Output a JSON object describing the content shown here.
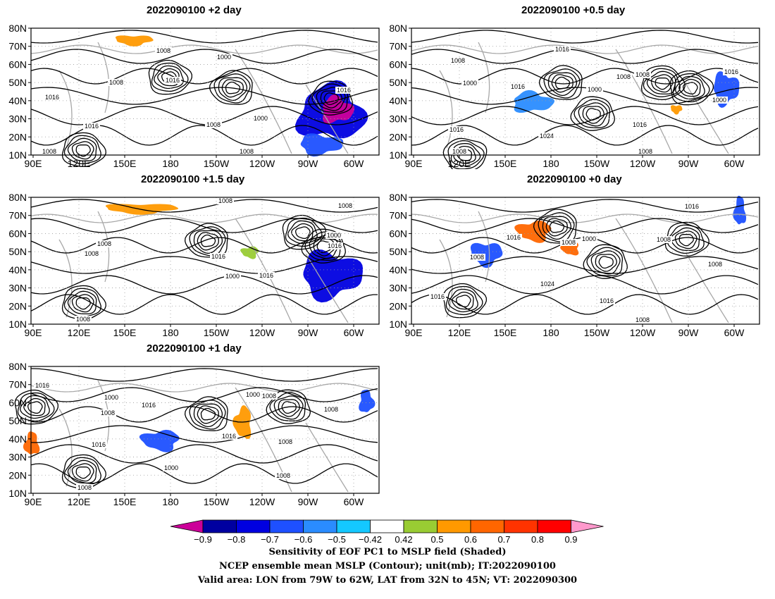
{
  "panels": [
    {
      "id": "p2",
      "title": "2022090100 +2 day",
      "pos": "top-left"
    },
    {
      "id": "p05",
      "title": "2022090100 +0.5 day",
      "pos": "top-right"
    },
    {
      "id": "p15",
      "title": "2022090100 +1.5 day",
      "pos": "middle-left"
    },
    {
      "id": "p0",
      "title": "2022090100 +0 day",
      "pos": "middle-right"
    },
    {
      "id": "p1",
      "title": "2022090100 +1 day",
      "pos": "bottom-left"
    }
  ],
  "axes": {
    "lon_labels": [
      "90E",
      "120E",
      "150E",
      "180",
      "150W",
      "120W",
      "90W",
      "60W"
    ],
    "lat_labels": [
      "80N",
      "70N",
      "60N",
      "50N",
      "40N",
      "30N",
      "20N",
      "10N"
    ]
  },
  "contour_labels": {
    "p2": [
      "1008",
      "1000",
      "1008",
      "1016",
      "1016",
      "1016",
      "1008",
      "1000",
      "1016",
      "1008",
      "1008"
    ],
    "p05": [
      "1016",
      "1008",
      "1000",
      "1016",
      "1008",
      "1008",
      "1000",
      "1016",
      "1000",
      "1016",
      "1024",
      "1008",
      "1016",
      "1008"
    ],
    "p15": [
      "1008",
      "1008",
      "1008",
      "1016",
      "1000",
      "1016",
      "1008",
      "1000",
      "1016",
      "1008"
    ],
    "p0": [
      "1016",
      "1016",
      "1000",
      "1008",
      "1008",
      "1024",
      "1016",
      "1008",
      "1008",
      "1016",
      "1008"
    ],
    "p1": [
      "1016",
      "1000",
      "1008",
      "1016",
      "1000",
      "1008",
      "1008",
      "1016",
      "1008",
      "1016",
      "1000",
      "1008",
      "1008"
    ]
  },
  "colorbar": {
    "ticks": [
      "−0.9",
      "−0.8",
      "−0.7",
      "−0.6",
      "−0.5",
      "−0.42",
      "0.42",
      "0.5",
      "0.6",
      "0.7",
      "0.8",
      "0.9"
    ],
    "colors": [
      "#cc0099",
      "#0000a0",
      "#0000e0",
      "#1e50ff",
      "#2a8cff",
      "#14c8ff",
      "#ffffff",
      "#99cc33",
      "#ff9900",
      "#ff6600",
      "#ff3300",
      "#ff0000",
      "#ff99cc"
    ]
  },
  "footer": {
    "line1": "Sensitivity of EOF PC1 to MSLP field (Shaded)",
    "line2": "NCEP ensemble mean MSLP (Contour); unit(mb); IT:2022090100",
    "line3": "Valid area: LON from 79W to 62W, LAT from 32N to 45N; VT: 2022090300"
  }
}
